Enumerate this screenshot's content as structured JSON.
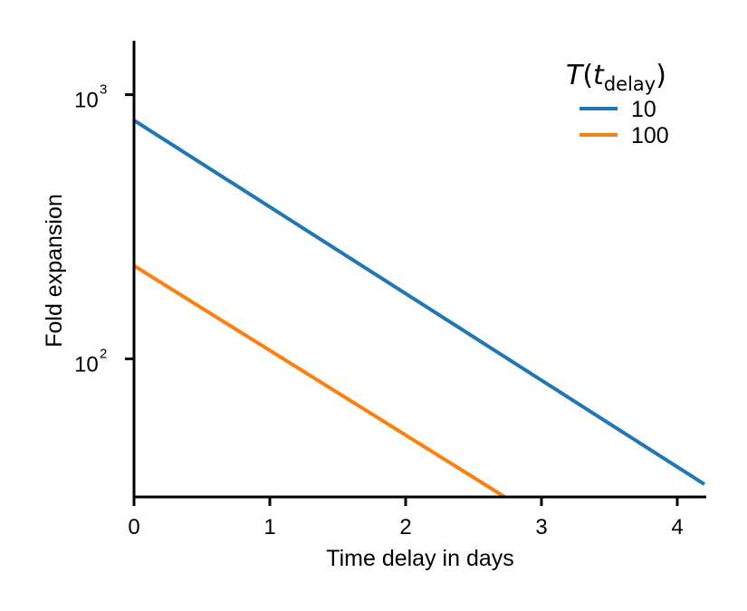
{
  "chart_data": {
    "type": "line",
    "title": "",
    "xlabel": "Time delay in days",
    "ylabel": "Fold expansion",
    "yscale": "log",
    "xlim": [
      0,
      4.2
    ],
    "ylim": [
      30,
      1600
    ],
    "xticks": [
      0,
      1,
      2,
      3,
      4
    ],
    "yticks": [
      {
        "value": 100,
        "base": "10",
        "exp": "2"
      },
      {
        "value": 1000,
        "base": "10",
        "exp": "3"
      }
    ],
    "grid": false,
    "legend": {
      "placement": "top-right",
      "title_var": "T",
      "title_arg": "t",
      "title_sub": "delay"
    },
    "series": [
      {
        "name": "10",
        "color": "#1f77b4",
        "x": [
          0,
          4.2
        ],
        "y": [
          800,
          33.5
        ]
      },
      {
        "name": "100",
        "color": "#ff7f0e",
        "x": [
          0,
          2.73
        ],
        "y": [
          225,
          30
        ]
      }
    ]
  }
}
